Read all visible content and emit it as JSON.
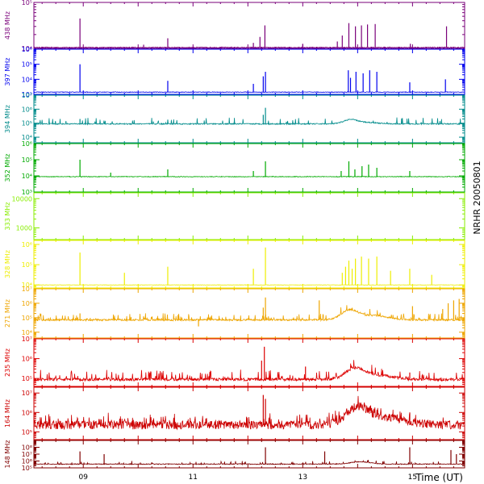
{
  "chart_data": {
    "type": "line",
    "title": "",
    "side_label": "NRHR 20050801",
    "xlabel": "Time (UT)",
    "x_tick_labels": [
      "09",
      "11",
      "13",
      "15"
    ],
    "x_ticks_hours": [
      9,
      11,
      13,
      15
    ],
    "xlim_hours": [
      8.1,
      15.95
    ],
    "panels": [
      {
        "name": "438 MHz",
        "color": "#7a007a",
        "log": true,
        "ylim": [
          4,
          5
        ],
        "tick_labels": [
          "10⁴",
          "10⁵"
        ],
        "tick_values": [
          4,
          5
        ],
        "baseline": 4.02,
        "noise": 0.01,
        "bursts": 0,
        "spikes": [
          {
            "t": 8.94,
            "v": 4.65
          },
          {
            "t": 10.1,
            "v": 4.08
          },
          {
            "t": 10.54,
            "v": 4.22
          },
          {
            "t": 12.1,
            "v": 4.12
          },
          {
            "t": 12.22,
            "v": 4.25
          },
          {
            "t": 12.31,
            "v": 4.5
          },
          {
            "t": 13.0,
            "v": 4.1
          },
          {
            "t": 13.63,
            "v": 4.15
          },
          {
            "t": 13.72,
            "v": 4.28
          },
          {
            "t": 13.84,
            "v": 4.55
          },
          {
            "t": 13.96,
            "v": 4.48
          },
          {
            "t": 14.07,
            "v": 4.5
          },
          {
            "t": 14.18,
            "v": 4.52
          },
          {
            "t": 14.32,
            "v": 4.53
          },
          {
            "t": 14.96,
            "v": 4.1
          },
          {
            "t": 15.62,
            "v": 4.48
          }
        ],
        "humps": []
      },
      {
        "name": "397 MHz",
        "color": "#0000ee",
        "log": true,
        "ylim": [
          3,
          6
        ],
        "tick_labels": [
          "10³",
          "10⁴",
          "10⁵",
          "10⁶"
        ],
        "tick_values": [
          3,
          4,
          5,
          6
        ],
        "baseline": 3.15,
        "noise": 0.02,
        "bursts": 0,
        "spikes": [
          {
            "t": 8.94,
            "v": 5.0
          },
          {
            "t": 10.54,
            "v": 3.9
          },
          {
            "t": 12.1,
            "v": 3.7
          },
          {
            "t": 12.28,
            "v": 4.2
          },
          {
            "t": 12.32,
            "v": 4.5
          },
          {
            "t": 13.83,
            "v": 4.6
          },
          {
            "t": 13.87,
            "v": 4.1
          },
          {
            "t": 13.97,
            "v": 4.5
          },
          {
            "t": 14.1,
            "v": 4.4
          },
          {
            "t": 14.22,
            "v": 4.6
          },
          {
            "t": 14.35,
            "v": 4.5
          },
          {
            "t": 14.95,
            "v": 3.8
          },
          {
            "t": 15.6,
            "v": 4.0
          }
        ],
        "humps": []
      },
      {
        "name": "394 MHz",
        "color": "#008b8b",
        "log": true,
        "ylim": [
          3.6,
          7
        ],
        "tick_labels": [
          "10⁴",
          "10⁵",
          "10⁶",
          "10⁷"
        ],
        "tick_values": [
          4,
          5,
          6,
          7
        ],
        "baseline": 4.95,
        "noise": 0.04,
        "bursts": 60,
        "spikes": [
          {
            "t": 8.94,
            "v": 5.3
          },
          {
            "t": 10.54,
            "v": 5.25
          },
          {
            "t": 12.32,
            "v": 6.1
          },
          {
            "t": 12.28,
            "v": 5.6
          }
        ],
        "humps": [
          {
            "t": 13.87,
            "w": 0.18,
            "a": 0.3
          },
          {
            "t": 14.2,
            "w": 0.25,
            "a": 0.1
          }
        ]
      },
      {
        "name": "352 MHz",
        "color": "#00aa00",
        "log": true,
        "ylim": [
          3,
          6
        ],
        "tick_labels": [
          "10³",
          "10⁴",
          "10⁵",
          "10⁶"
        ],
        "tick_values": [
          3,
          4,
          5,
          6
        ],
        "baseline": 3.95,
        "noise": 0.02,
        "bursts": 0,
        "spikes": [
          {
            "t": 8.94,
            "v": 5.0
          },
          {
            "t": 9.5,
            "v": 4.2
          },
          {
            "t": 10.54,
            "v": 4.4
          },
          {
            "t": 12.1,
            "v": 4.3
          },
          {
            "t": 12.32,
            "v": 4.9
          },
          {
            "t": 13.7,
            "v": 4.3
          },
          {
            "t": 13.84,
            "v": 4.9
          },
          {
            "t": 13.95,
            "v": 4.4
          },
          {
            "t": 14.08,
            "v": 4.6
          },
          {
            "t": 14.2,
            "v": 4.7
          },
          {
            "t": 14.35,
            "v": 4.5
          },
          {
            "t": 14.95,
            "v": 4.3
          }
        ],
        "humps": []
      },
      {
        "name": "333 MHz",
        "color": "#88ee00",
        "log": true,
        "ylim": [
          2.6,
          4.2
        ],
        "tick_labels": [
          "1000",
          "10000"
        ],
        "tick_values": [
          3,
          4
        ],
        "baseline": null,
        "noise": 0,
        "bursts": 0,
        "spikes": [],
        "humps": []
      },
      {
        "name": "328 MHz",
        "color": "#eeee00",
        "log": true,
        "ylim": [
          3.85,
          6.2
        ],
        "tick_labels": [
          "10⁴",
          "10⁵",
          "10⁶"
        ],
        "tick_values": [
          4,
          5,
          6
        ],
        "baseline": 4.0,
        "noise": 0.01,
        "bursts": 0,
        "spikes": [
          {
            "t": 8.94,
            "v": 5.6
          },
          {
            "t": 9.75,
            "v": 4.6
          },
          {
            "t": 10.54,
            "v": 4.9
          },
          {
            "t": 12.1,
            "v": 4.8
          },
          {
            "t": 12.32,
            "v": 5.85
          },
          {
            "t": 13.72,
            "v": 4.6
          },
          {
            "t": 13.78,
            "v": 4.9
          },
          {
            "t": 13.84,
            "v": 5.2
          },
          {
            "t": 13.9,
            "v": 4.8
          },
          {
            "t": 13.96,
            "v": 5.3
          },
          {
            "t": 14.07,
            "v": 5.4
          },
          {
            "t": 14.2,
            "v": 5.3
          },
          {
            "t": 14.35,
            "v": 5.4
          },
          {
            "t": 14.6,
            "v": 4.7
          },
          {
            "t": 14.95,
            "v": 4.8
          },
          {
            "t": 15.35,
            "v": 4.5
          }
        ],
        "humps": []
      },
      {
        "name": "271 MHz",
        "color": "#eea500",
        "log": true,
        "ylim": [
          3.6,
          7
        ],
        "tick_labels": [
          "10⁴",
          "10⁵",
          "10⁶",
          "10⁷"
        ],
        "tick_values": [
          4,
          5,
          6,
          7
        ],
        "baseline": 4.85,
        "noise": 0.06,
        "bursts": 120,
        "spikes": [
          {
            "t": 8.94,
            "v": 5.3
          },
          {
            "t": 11.1,
            "v": 4.4
          },
          {
            "t": 12.32,
            "v": 6.4
          },
          {
            "t": 12.28,
            "v": 5.7
          },
          {
            "t": 13.3,
            "v": 6.2
          },
          {
            "t": 15.0,
            "v": 5.8
          },
          {
            "t": 15.55,
            "v": 5.6
          },
          {
            "t": 15.65,
            "v": 6.0
          },
          {
            "t": 15.75,
            "v": 6.2
          },
          {
            "t": 15.85,
            "v": 6.3
          }
        ],
        "humps": [
          {
            "t": 13.85,
            "w": 0.22,
            "a": 0.65
          },
          {
            "t": 14.3,
            "w": 0.35,
            "a": 0.3
          }
        ]
      },
      {
        "name": "235 MHz",
        "color": "#dd0000",
        "log": true,
        "ylim": [
          4.6,
          7
        ],
        "tick_labels": [
          "10⁵",
          "10⁶",
          "10⁷"
        ],
        "tick_values": [
          5,
          6,
          7
        ],
        "baseline": 4.95,
        "noise": 0.07,
        "bursts": 110,
        "spikes": [
          {
            "t": 12.3,
            "v": 6.6
          },
          {
            "t": 12.25,
            "v": 5.9
          },
          {
            "t": 13.05,
            "v": 5.6
          },
          {
            "t": 14.95,
            "v": 5.3
          }
        ],
        "humps": [
          {
            "t": 13.95,
            "w": 0.25,
            "a": 0.55
          },
          {
            "t": 14.4,
            "w": 0.35,
            "a": 0.2
          }
        ]
      },
      {
        "name": "164 MHz",
        "color": "#cc0000",
        "log": true,
        "ylim": [
          4.6,
          7.3
        ],
        "tick_labels": [
          "10⁵",
          "10⁶",
          "10⁷"
        ],
        "tick_values": [
          5,
          6,
          7
        ],
        "baseline": 5.35,
        "noise": 0.22,
        "bursts": 160,
        "spikes": [
          {
            "t": 12.28,
            "v": 6.9
          },
          {
            "t": 12.32,
            "v": 6.7
          },
          {
            "t": 14.95,
            "v": 6.0
          }
        ],
        "humps": [
          {
            "t": 14.0,
            "w": 0.3,
            "a": 0.9
          },
          {
            "t": 14.6,
            "w": 0.45,
            "a": 0.35
          }
        ]
      },
      {
        "name": "148 MHz",
        "color": "#800000",
        "log": true,
        "ylim": [
          5,
          9
        ],
        "tick_labels": [
          "10⁵",
          "10⁶",
          "10⁷",
          "10⁸"
        ],
        "tick_values": [
          5,
          6,
          7,
          8
        ],
        "baseline": 5.55,
        "noise": 0.06,
        "bursts": 60,
        "spikes": [
          {
            "t": 8.94,
            "v": 7.4
          },
          {
            "t": 9.38,
            "v": 7.0
          },
          {
            "t": 12.32,
            "v": 8.0
          },
          {
            "t": 13.4,
            "v": 7.4
          },
          {
            "t": 14.95,
            "v": 8.0
          },
          {
            "t": 15.7,
            "v": 7.6
          },
          {
            "t": 15.8,
            "v": 7.0
          }
        ],
        "humps": [
          {
            "t": 14.05,
            "w": 0.25,
            "a": 0.35
          }
        ]
      }
    ]
  }
}
